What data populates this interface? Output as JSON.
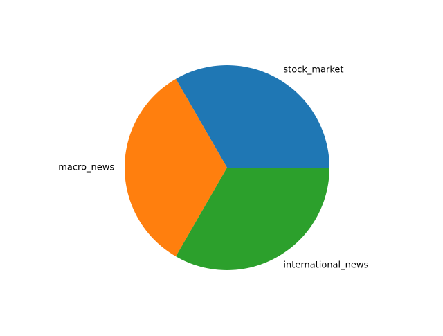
{
  "chart_data": {
    "type": "pie",
    "title": "",
    "slices": [
      {
        "label": "stock_market",
        "value": 1,
        "color": "#1f77b4"
      },
      {
        "label": "macro_news",
        "value": 1,
        "color": "#ff7f0e"
      },
      {
        "label": "international_news",
        "value": 1,
        "color": "#2ca02c"
      }
    ],
    "start_angle_deg": 0,
    "direction": "counterclockwise",
    "legend": "none"
  }
}
